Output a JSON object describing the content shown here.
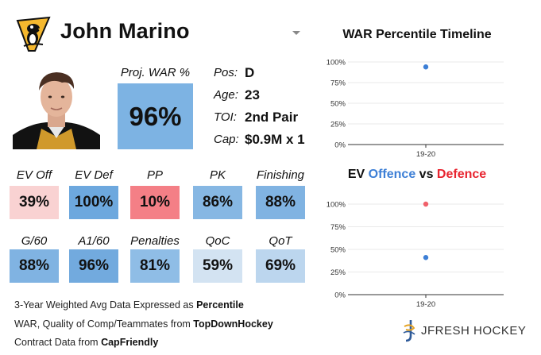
{
  "header": {
    "player_name": "John Marino",
    "logo_icon": "penguins-logo-icon",
    "dropdown_icon": "chevron-down-icon"
  },
  "projection": {
    "label": "Proj. WAR %",
    "value": "96%",
    "color": "#7db3e3"
  },
  "bio": [
    {
      "label": "Pos:",
      "value": "D"
    },
    {
      "label": "Age:",
      "value": "23"
    },
    {
      "label": "TOI:",
      "value": "2nd Pair"
    },
    {
      "label": "Cap:",
      "value": "$0.9M x 1"
    }
  ],
  "stats_row1": [
    {
      "label": "EV Off",
      "value": "39%",
      "color": "#f9d2d2"
    },
    {
      "label": "EV Def",
      "value": "100%",
      "color": "#6da8de"
    },
    {
      "label": "PP",
      "value": "10%",
      "color": "#f47f86"
    },
    {
      "label": "PK",
      "value": "86%",
      "color": "#86b7e3"
    },
    {
      "label": "Finishing",
      "value": "88%",
      "color": "#80b3e2"
    }
  ],
  "stats_row2": [
    {
      "label": "G/60",
      "value": "88%",
      "color": "#80b3e2"
    },
    {
      "label": "A1/60",
      "value": "96%",
      "color": "#72aade"
    },
    {
      "label": "Penalties",
      "value": "81%",
      "color": "#8fbde6"
    },
    {
      "label": "QoC",
      "value": "59%",
      "color": "#d3e3f2"
    },
    {
      "label": "QoT",
      "value": "69%",
      "color": "#bcd6ee"
    }
  ],
  "notes": {
    "line1_prefix": "3-Year Weighted Avg Data Expressed as ",
    "line1_bold": "Percentile",
    "line2_prefix": "WAR, Quality of Comp/Teammates from ",
    "line2_bold": "TopDownHockey",
    "line3_prefix": "Contract Data from ",
    "line3_bold": "CapFriendly"
  },
  "war_chart_title": "WAR Percentile Timeline",
  "ev_chart_title": {
    "part1": "EV ",
    "offence": "Offence",
    "vs": " vs ",
    "defence": "Defence"
  },
  "chart_data": [
    {
      "type": "scatter",
      "title": "WAR Percentile Timeline",
      "x": [
        "19-20"
      ],
      "series": [
        {
          "values": [
            94
          ],
          "color": "#3d7fd6"
        }
      ],
      "yticks": [
        "100%",
        "75%",
        "50%",
        "25%",
        "0%"
      ],
      "ylim": [
        0,
        100
      ]
    },
    {
      "type": "scatter",
      "title": "EV Offence vs Defence",
      "x": [
        "19-20"
      ],
      "series": [
        {
          "values": [
            100
          ],
          "color": "#f0606a"
        },
        {
          "values": [
            41
          ],
          "color": "#3d7fd6"
        }
      ],
      "yticks": [
        "100%",
        "75%",
        "50%",
        "25%",
        "0%"
      ],
      "ylim": [
        0,
        100
      ]
    }
  ],
  "brand": {
    "text": "JFRESH HOCKEY",
    "icon": "jfresh-logo-icon"
  }
}
